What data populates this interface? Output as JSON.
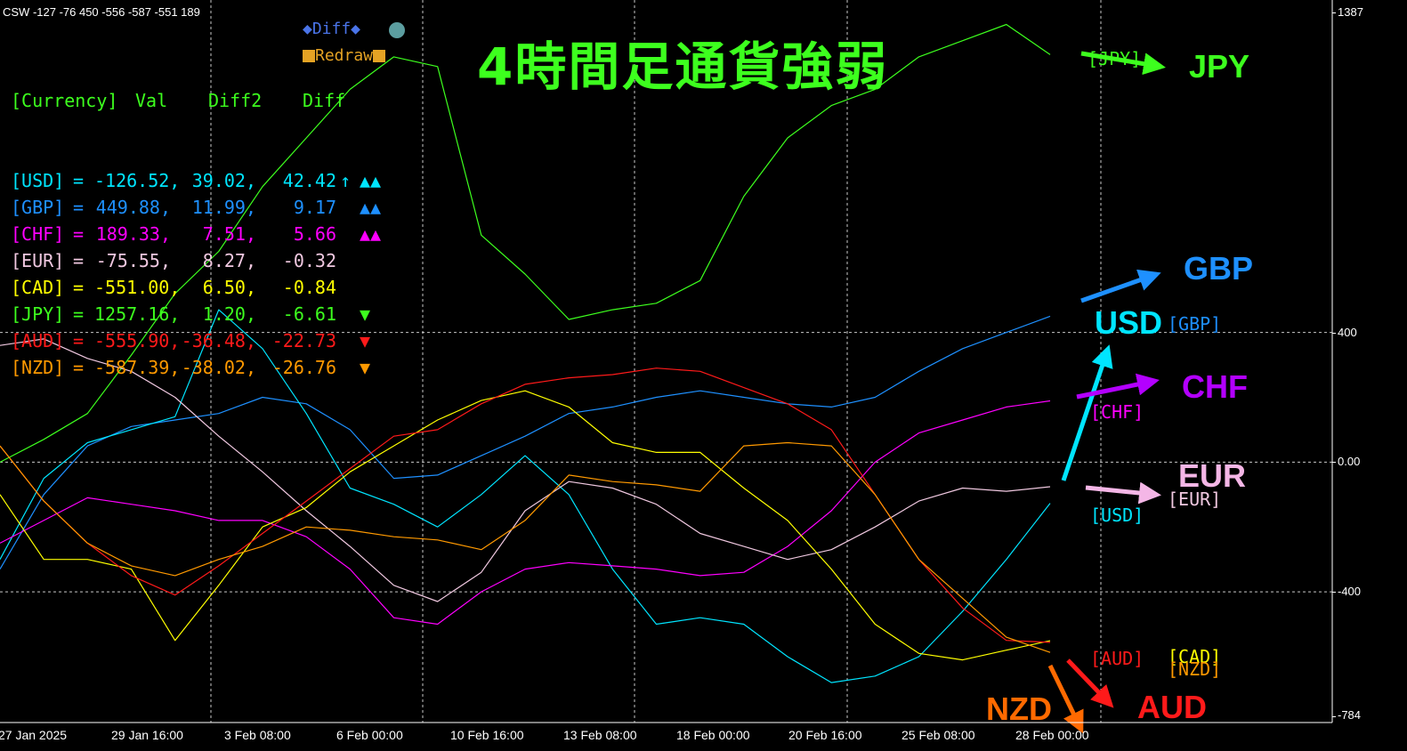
{
  "indicator_name": "CSW -127 -76 450 -556 -587 -551 189",
  "title": "4時間足通貨強弱",
  "buttons": {
    "diff": "◆Diff◆",
    "redraw": "Redraw"
  },
  "table": {
    "header": {
      "currency": "[Currency]",
      "val": "Val",
      "diff2": "Diff2",
      "diff": "Diff"
    },
    "rows": [
      {
        "cur": "[USD]",
        "val": "-126.52,",
        "diff2": "39.02,",
        "diff": "42.42",
        "extra": "↑",
        "marks": "▲▲",
        "color": "#00e5ff",
        "markcolor": "#00e5ff"
      },
      {
        "cur": "[GBP]",
        "val": "449.88,",
        "diff2": "11.99,",
        "diff": "9.17",
        "extra": "",
        "marks": "▲▲",
        "color": "#1e90ff",
        "markcolor": "#1e90ff"
      },
      {
        "cur": "[CHF]",
        "val": "189.33,",
        "diff2": "7.51,",
        "diff": "5.66",
        "extra": "",
        "marks": "▲▲",
        "color": "#ff00ff",
        "markcolor": "#ff00ff"
      },
      {
        "cur": "[EUR]",
        "val": "-75.55,",
        "diff2": "8.27,",
        "diff": "-0.32",
        "extra": "",
        "marks": "",
        "color": "#f0c8e0",
        "markcolor": "#f0c8e0"
      },
      {
        "cur": "[CAD]",
        "val": "-551.00,",
        "diff2": "6.50,",
        "diff": "-0.84",
        "extra": "",
        "marks": "",
        "color": "#ffff00",
        "markcolor": "#ffff00"
      },
      {
        "cur": "[JPY]",
        "val": "1257.16,",
        "diff2": "1.20,",
        "diff": "-6.61",
        "extra": "",
        "marks": "▼",
        "color": "#3dff1e",
        "markcolor": "#3dff1e"
      },
      {
        "cur": "[AUD]",
        "val": "-555.90,",
        "diff2": "-36.48,",
        "diff": "-22.73",
        "extra": "",
        "marks": "▼",
        "color": "#ff1a1a",
        "markcolor": "#ff1a1a"
      },
      {
        "cur": "[NZD]",
        "val": "-587.39,",
        "diff2": "-38.02,",
        "diff": "-26.76",
        "extra": "",
        "marks": "▼",
        "color": "#ff9900",
        "markcolor": "#ff9900"
      }
    ]
  },
  "line_tags": {
    "jpy": "[JPY]",
    "gbp": "[GBP]",
    "chf": "[CHF]",
    "usd": "[USD]",
    "eur": "[EUR]",
    "aud": "[AUD]",
    "cad": "[CAD]",
    "nzd": "[NZD]"
  },
  "big_labels": {
    "jpy": "JPY",
    "gbp": "GBP",
    "usd": "USD",
    "chf": "CHF",
    "eur": "EUR",
    "nzd": "NZD",
    "aud": "AUD"
  },
  "y_axis": {
    "labels": [
      "1387",
      "400",
      "0.00",
      "-400",
      "-784"
    ],
    "values": [
      1387,
      400,
      0,
      -400,
      -784
    ]
  },
  "x_axis": {
    "labels": [
      "27 Jan 2025",
      "29 Jan 16:00",
      "3 Feb 08:00",
      "6 Feb 00:00",
      "10 Feb 16:00",
      "13 Feb 08:00",
      "18 Feb 00:00",
      "20 Feb 16:00",
      "25 Feb 08:00",
      "28 Feb 00:00"
    ]
  },
  "chart_data": {
    "type": "line",
    "ylim": [
      -784,
      1387
    ],
    "x_ticks": [
      "27 Jan 2025",
      "29 Jan 16:00",
      "3 Feb 08:00",
      "6 Feb 00:00",
      "10 Feb 16:00",
      "13 Feb 08:00",
      "18 Feb 00:00",
      "20 Feb 16:00",
      "25 Feb 08:00",
      "28 Feb 00:00"
    ],
    "series": [
      {
        "name": "JPY",
        "color": "#3dff1e",
        "values": [
          0,
          70,
          150,
          330,
          520,
          650,
          850,
          1000,
          1150,
          1250,
          1220,
          700,
          580,
          440,
          470,
          490,
          560,
          820,
          1000,
          1100,
          1150,
          1250,
          1300,
          1350,
          1257
        ]
      },
      {
        "name": "GBP",
        "color": "#1e90ff",
        "values": [
          -330,
          -100,
          50,
          110,
          130,
          150,
          200,
          180,
          100,
          -50,
          -40,
          20,
          80,
          150,
          170,
          200,
          220,
          200,
          180,
          170,
          200,
          280,
          350,
          400,
          450
        ]
      },
      {
        "name": "USD",
        "color": "#00e5ff",
        "values": [
          -300,
          -50,
          60,
          100,
          140,
          470,
          350,
          150,
          -80,
          -130,
          -200,
          -100,
          20,
          -100,
          -330,
          -500,
          -480,
          -500,
          -600,
          -680,
          -660,
          -600,
          -460,
          -300,
          -127
        ]
      },
      {
        "name": "CHF",
        "color": "#ff00ff",
        "values": [
          -250,
          -180,
          -110,
          -130,
          -150,
          -180,
          -180,
          -230,
          -330,
          -480,
          -500,
          -400,
          -330,
          -310,
          -320,
          -330,
          -350,
          -340,
          -260,
          -150,
          0,
          90,
          130,
          170,
          189
        ]
      },
      {
        "name": "EUR",
        "color": "#f0c8e0",
        "values": [
          360,
          380,
          320,
          280,
          200,
          80,
          -30,
          -150,
          -260,
          -380,
          -430,
          -340,
          -150,
          -60,
          -80,
          -130,
          -220,
          -260,
          -300,
          -270,
          -200,
          -120,
          -80,
          -90,
          -76
        ]
      },
      {
        "name": "CAD",
        "color": "#ffff00",
        "values": [
          -100,
          -300,
          -300,
          -330,
          -550,
          -380,
          -200,
          -140,
          -30,
          50,
          130,
          190,
          220,
          170,
          60,
          30,
          30,
          -80,
          -180,
          -330,
          -500,
          -590,
          -610,
          -580,
          -551
        ]
      },
      {
        "name": "AUD",
        "color": "#ff1a1a",
        "values": [
          50,
          -120,
          -250,
          -350,
          -410,
          -320,
          -220,
          -120,
          -20,
          80,
          100,
          180,
          240,
          260,
          270,
          290,
          280,
          230,
          180,
          100,
          -100,
          -300,
          -450,
          -550,
          -556
        ]
      },
      {
        "name": "NZD",
        "color": "#ff9900",
        "values": [
          50,
          -120,
          -250,
          -320,
          -350,
          -300,
          -260,
          -200,
          -210,
          -230,
          -240,
          -270,
          -180,
          -40,
          -60,
          -70,
          -90,
          50,
          60,
          50,
          -100,
          -300,
          -420,
          -540,
          -587
        ]
      }
    ]
  }
}
